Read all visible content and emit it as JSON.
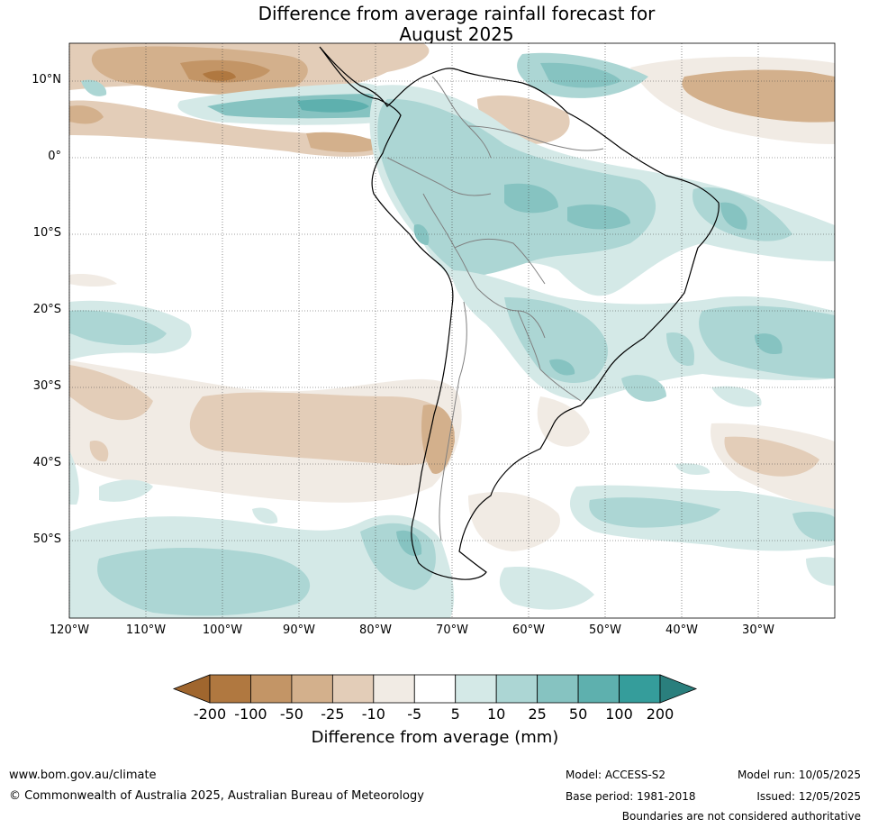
{
  "title_line1": "Difference from average rainfall forecast for",
  "title_line2": "August 2025",
  "lat_labels": [
    "10°N",
    "0°",
    "10°S",
    "20°S",
    "30°S",
    "40°S",
    "50°S"
  ],
  "lat_values": [
    10,
    0,
    -10,
    -20,
    -30,
    -40,
    -50
  ],
  "lon_labels": [
    "120°W",
    "110°W",
    "100°W",
    "90°W",
    "80°W",
    "70°W",
    "60°W",
    "50°W",
    "40°W",
    "30°W"
  ],
  "lon_values": [
    -120,
    -110,
    -100,
    -90,
    -80,
    -70,
    -60,
    -50,
    -40,
    -30
  ],
  "colorbar": {
    "labels": [
      "-200",
      "-100",
      "-50",
      "-25",
      "-10",
      "-5",
      "5",
      "10",
      "25",
      "50",
      "100",
      "200"
    ],
    "colors": [
      "#a0662e",
      "#b07840",
      "#c39566",
      "#d3b08c",
      "#e3cdb8",
      "#f1ebe4",
      "#ffffff",
      "#d4e9e7",
      "#acd6d4",
      "#86c3c1",
      "#5eb0ae",
      "#359d9b",
      "#2a7f7d"
    ],
    "title": "Difference from average (mm)"
  },
  "footer": {
    "website": "www.bom.gov.au/climate",
    "copyright": "© Commonwealth of Australia 2025, Australian Bureau of Meteorology",
    "model": "Model: ACCESS-S2",
    "base_period": "Base period: 1981-2018",
    "model_run": "Model run: 10/05/2025",
    "issued": "Issued: 12/05/2025",
    "disclaimer": "Boundaries are not considered authoritative"
  }
}
